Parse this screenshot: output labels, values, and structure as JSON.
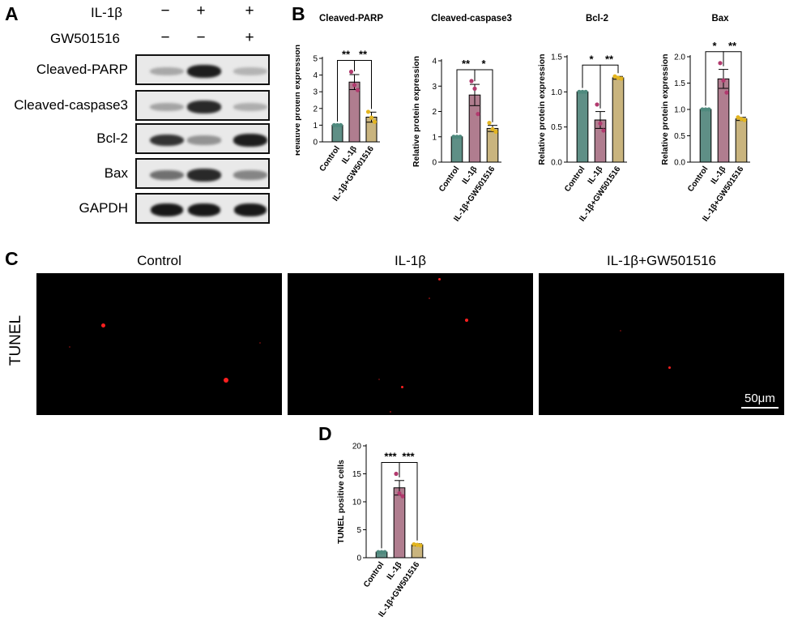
{
  "panel_a": {
    "letter": "A",
    "treatments": [
      {
        "label": "IL-1β",
        "signs": [
          "−",
          "+",
          "+"
        ]
      },
      {
        "label": "GW501516",
        "signs": [
          "−",
          "−",
          "+"
        ]
      }
    ],
    "rows": [
      {
        "label": "Cleaved-PARP",
        "intensities": [
          0.28,
          0.95,
          0.22
        ]
      },
      {
        "label": "Cleaved-caspase3",
        "intensities": [
          0.3,
          0.9,
          0.25
        ]
      },
      {
        "label": "Bcl-2",
        "intensities": [
          0.85,
          0.38,
          0.95
        ]
      },
      {
        "label": "Bax",
        "intensities": [
          0.55,
          0.9,
          0.45
        ]
      },
      {
        "label": "GAPDH",
        "intensities": [
          0.98,
          0.98,
          0.98
        ]
      }
    ]
  },
  "panel_b": {
    "letter": "B"
  },
  "panel_c": {
    "letter": "C",
    "row_label": "TUNEL",
    "columns": [
      "Control",
      "IL-1β",
      "IL-1β+GW501516"
    ],
    "scale_bar": "50μm"
  },
  "panel_d": {
    "letter": "D"
  },
  "colors": {
    "control": "#5f8f86",
    "il1b": "#b07d8f",
    "combo": "#c9b47e",
    "dot_control": "#4f8a7e",
    "dot_il1b": "#b23a6e",
    "dot_combo": "#e3b520"
  },
  "chart_data": [
    {
      "id": "B1",
      "type": "bar",
      "title": "Cleaved-PARP",
      "ylabel": "Relative protein expression",
      "ylim": [
        0,
        5
      ],
      "yticks": [
        0,
        1,
        2,
        3,
        4,
        5
      ],
      "categories": [
        "Control",
        "IL-1β",
        "IL-1β+GW501516"
      ],
      "values": [
        1.0,
        3.58,
        1.48
      ],
      "errors": [
        0.02,
        0.45,
        0.3
      ],
      "points": [
        [
          1.0,
          1.0,
          1.0
        ],
        [
          4.2,
          3.4,
          3.1
        ],
        [
          1.8,
          1.45,
          1.2
        ]
      ],
      "significance": [
        {
          "from": 0,
          "to": 1,
          "label": "**"
        },
        {
          "from": 1,
          "to": 2,
          "label": "**"
        }
      ]
    },
    {
      "id": "B2",
      "type": "bar",
      "title": "Cleaved-caspase3",
      "ylabel": "Relative protein expression",
      "ylim": [
        0,
        4
      ],
      "yticks": [
        0,
        1,
        2,
        3,
        4
      ],
      "categories": [
        "Control",
        "IL-1β",
        "IL-1β+GW501516"
      ],
      "values": [
        1.0,
        2.65,
        1.33
      ],
      "errors": [
        0.02,
        0.42,
        0.12
      ],
      "points": [
        [
          1.0,
          1.0,
          1.0
        ],
        [
          3.2,
          2.9,
          1.9
        ],
        [
          1.55,
          1.3,
          1.2
        ]
      ],
      "significance": [
        {
          "from": 0,
          "to": 1,
          "label": "**"
        },
        {
          "from": 1,
          "to": 2,
          "label": "*"
        }
      ]
    },
    {
      "id": "B3",
      "type": "bar",
      "title": "Bcl-2",
      "ylabel": "Relative protein expression",
      "ylim": [
        0,
        1.5
      ],
      "yticks": [
        0.0,
        0.5,
        1.0,
        1.5
      ],
      "categories": [
        "Control",
        "IL-1β",
        "IL-1β+GW501516"
      ],
      "values": [
        1.0,
        0.6,
        1.2
      ],
      "errors": [
        0.01,
        0.12,
        0.02
      ],
      "points": [
        [
          1.0,
          1.0,
          1.0
        ],
        [
          0.82,
          0.55,
          0.45
        ],
        [
          1.22,
          1.2,
          1.19
        ]
      ],
      "significance": [
        {
          "from": 0,
          "to": 1,
          "label": "*"
        },
        {
          "from": 1,
          "to": 2,
          "label": "**"
        }
      ]
    },
    {
      "id": "B4",
      "type": "bar",
      "title": "Bax",
      "ylabel": "Relative protein expression",
      "ylim": [
        0,
        2.0
      ],
      "yticks": [
        0.0,
        0.5,
        1.0,
        1.5,
        2.0
      ],
      "categories": [
        "Control",
        "IL-1β",
        "IL-1β+GW501516"
      ],
      "values": [
        1.0,
        1.58,
        0.82
      ],
      "errors": [
        0.01,
        0.18,
        0.03
      ],
      "points": [
        [
          1.0,
          1.0,
          1.0
        ],
        [
          1.88,
          1.55,
          1.32
        ],
        [
          0.85,
          0.82,
          0.8
        ]
      ],
      "significance": [
        {
          "from": 0,
          "to": 1,
          "label": "*"
        },
        {
          "from": 1,
          "to": 2,
          "label": "**"
        }
      ]
    },
    {
      "id": "D",
      "type": "bar",
      "title": "",
      "ylabel": "TUNEL positive cells",
      "ylim": [
        0,
        20
      ],
      "yticks": [
        0,
        5,
        10,
        15,
        20
      ],
      "categories": [
        "Control",
        "IL-1β",
        "IL-1β+GW501516"
      ],
      "values": [
        1.0,
        12.5,
        2.3
      ],
      "errors": [
        0.1,
        1.3,
        0.2
      ],
      "points": [
        [
          1.0,
          1.0,
          1.0
        ],
        [
          15.0,
          11.5,
          11.0
        ],
        [
          2.4,
          2.3,
          2.2
        ]
      ],
      "significance": [
        {
          "from": 0,
          "to": 1,
          "label": "***"
        },
        {
          "from": 1,
          "to": 2,
          "label": "***"
        }
      ]
    }
  ]
}
